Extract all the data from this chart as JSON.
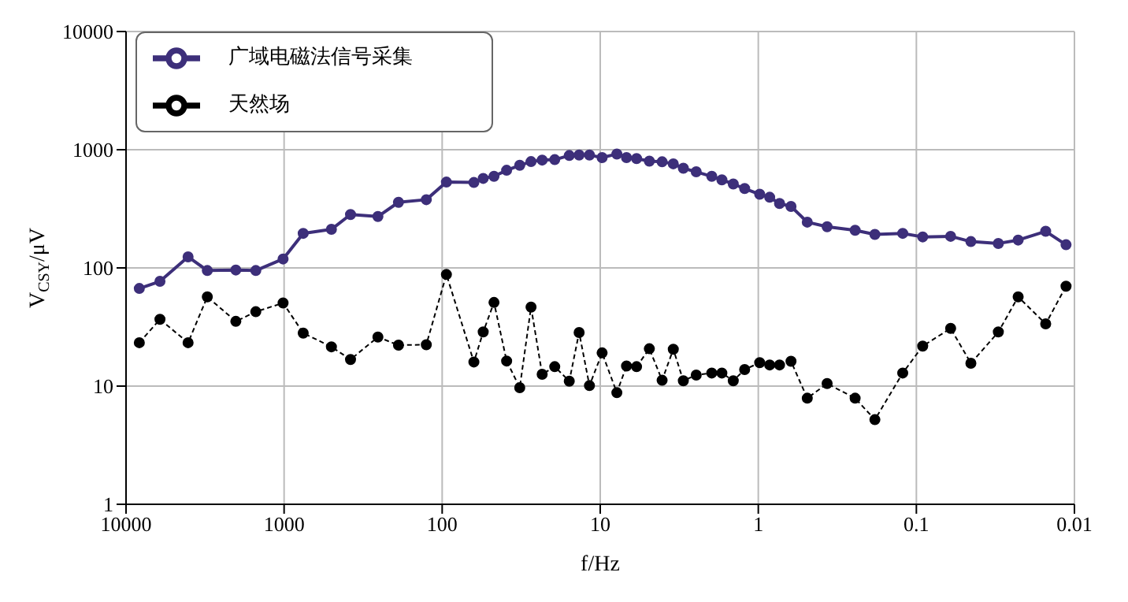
{
  "chart_data": {
    "type": "line",
    "xlabel": "f/Hz",
    "ylabel": "V$_{CSY}$/μV",
    "log": "xy",
    "grid": true,
    "legend": "top left",
    "marker": "circle",
    "xlim": [
      10000,
      0.01
    ],
    "xticks": [
      10000,
      1000,
      100,
      10,
      1,
      0.1,
      0.01
    ],
    "ylim": [
      1,
      10000
    ],
    "yticks": [
      1,
      10,
      100,
      1000,
      10000
    ],
    "x": [
      8240,
      6100,
      4050,
      3060,
      2020,
      1510,
      1015,
      757,
      502,
      380,
      255,
      189,
      126,
      94,
      63,
      55,
      47,
      39.1,
      32.3,
      27.4,
      23.3,
      19.4,
      15.7,
      13.6,
      11.7,
      9.73,
      7.85,
      6.82,
      5.89,
      4.89,
      4.06,
      3.45,
      2.98,
      2.47,
      1.97,
      1.7,
      1.44,
      1.22,
      0.98,
      0.847,
      0.734,
      0.621,
      0.49,
      0.367,
      0.244,
      0.183,
      0.122,
      0.0912,
      0.0607,
      0.0452,
      0.0303,
      0.0227,
      0.0152,
      0.0113
    ],
    "series": [
      {
        "name": "广域电磁法信号采集",
        "color": "#3d2f7a",
        "line_style": "solid",
        "values": [
          67,
          77,
          124,
          95,
          96,
          95,
          119,
          196,
          212,
          283,
          272,
          359,
          378,
          532,
          528,
          572,
          595,
          670,
          738,
          793,
          817,
          824,
          893,
          902,
          902,
          857,
          920,
          857,
          841,
          800,
          790,
          760,
          697,
          650,
          595,
          556,
          513,
          469,
          420,
          396,
          351,
          331,
          244,
          223,
          208,
          192,
          196,
          183,
          185,
          167,
          161,
          172,
          204,
          157
        ]
      },
      {
        "name": "天然场",
        "color": "#000000",
        "line_style": "dashed",
        "values": [
          23.3,
          36.7,
          23.3,
          56.9,
          35.3,
          42.6,
          50.5,
          28.1,
          21.5,
          16.8,
          26,
          22.2,
          22.4,
          88,
          16,
          28.7,
          51,
          16.3,
          9.7,
          46.6,
          12.6,
          14.6,
          11,
          28.4,
          10.1,
          19.1,
          8.8,
          14.8,
          14.6,
          20.7,
          11.2,
          20.5,
          11.1,
          12.4,
          12.9,
          12.9,
          11.1,
          13.8,
          15.8,
          15.1,
          15.1,
          16.2,
          7.9,
          10.5,
          7.9,
          5.2,
          12.9,
          21.8,
          30.8,
          15.6,
          28.7,
          56.9,
          33.6,
          70
        ]
      }
    ]
  }
}
